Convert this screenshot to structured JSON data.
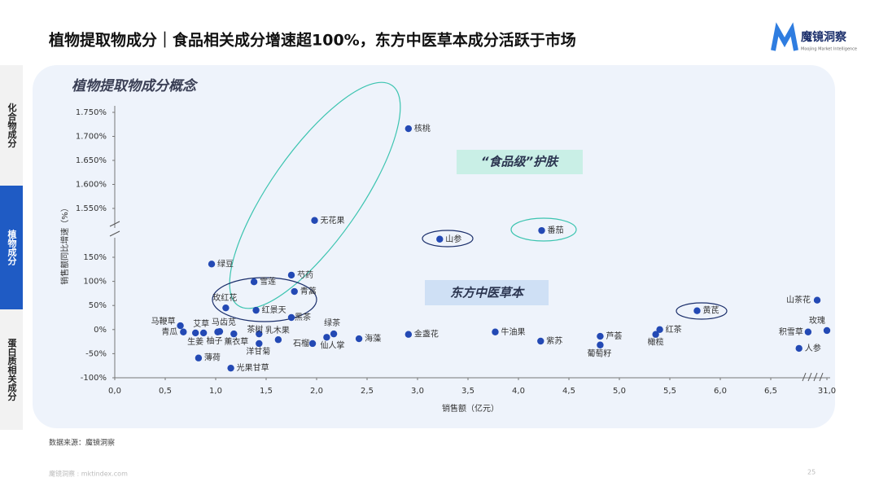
{
  "page": {
    "title": "植物提取物成分｜食品相关成分增速超100%，东方中医草本成分活跃于市场",
    "logo": "魔镜洞察",
    "logo_sub": "Moojing Market Intelligence",
    "tabs": [
      "化合物成分",
      "植物成分",
      "蛋白质相关成分"
    ],
    "source": "数据来源：魔镜洞察",
    "footer": "魔镜洞察 : mktindex.com",
    "page_number": "25"
  },
  "chart_data": {
    "type": "scatter",
    "title": "植物提取物成分概念",
    "x_label": "销售额（亿元）",
    "y_label": "销售额同比增速（%）",
    "annotations": [
      "“食品级”护肤",
      "东方中医草本"
    ],
    "color": "#2349b4",
    "xlim": [
      0,
      31
    ],
    "xbreak": [
      7,
      31
    ],
    "xticks": [
      {
        "value": 0,
        "label": "0,0"
      },
      {
        "value": 0.5,
        "label": "0,5"
      },
      {
        "value": 1,
        "label": "1,0"
      },
      {
        "value": 1.5,
        "label": "1,5"
      },
      {
        "value": 2,
        "label": "2,0"
      },
      {
        "value": 2.5,
        "label": "2,5"
      },
      {
        "value": 3,
        "label": "3,0"
      },
      {
        "value": 3.5,
        "label": "3,5"
      },
      {
        "value": 4,
        "label": "4,0"
      },
      {
        "value": 4.5,
        "label": "4,5"
      },
      {
        "value": 5,
        "label": "5,0"
      },
      {
        "value": 5.5,
        "label": "5,5"
      },
      {
        "value": 6,
        "label": "6,0"
      },
      {
        "value": 6.5,
        "label": "6,5"
      },
      {
        "value": 31,
        "label": "31,0"
      }
    ],
    "ylim": [
      -100,
      1750
    ],
    "ybreak": [
      150,
      1550
    ],
    "yticks": [
      {
        "value": -100,
        "label": "-100%"
      },
      {
        "value": -50,
        "label": "-50%"
      },
      {
        "value": 0,
        "label": "0%"
      },
      {
        "value": 50,
        "label": "50%"
      },
      {
        "value": 100,
        "label": "100%"
      },
      {
        "value": 150,
        "label": "150%"
      },
      {
        "value": 1550,
        "label": "1.550%"
      },
      {
        "value": 1600,
        "label": "1.600%"
      },
      {
        "value": 1650,
        "label": "1.650%"
      },
      {
        "value": 1700,
        "label": "1.700%"
      },
      {
        "value": 1750,
        "label": "1.750%"
      }
    ],
    "labels": [
      "核桃",
      "无花果",
      "山参",
      "番茄",
      "绿豆",
      "雪莲",
      "芍药",
      "青蒿",
      "玫红花",
      "红景天",
      "黑茶",
      "马鞭草",
      "青瓜",
      "艾草",
      "马齿苋",
      "生姜",
      "柚子",
      "薰衣草",
      "茶树",
      "乳木果",
      "洋甘菊",
      "石榴",
      "绿茶",
      "仙人掌",
      "薄荷",
      "光果甘草",
      "海藻",
      "金盏花",
      "牛油果",
      "紫苏",
      "芦荟",
      "葡萄籽",
      "红茶",
      "橄榄",
      "黄芪",
      "山茶花",
      "积雪草",
      "玫瑰",
      "人参"
    ],
    "x": [
      2.91,
      1.98,
      3.22,
      4.23,
      0.96,
      1.38,
      1.75,
      1.78,
      1.1,
      1.4,
      1.75,
      0.65,
      0.68,
      0.8,
      1.04,
      0.88,
      1.02,
      1.18,
      1.43,
      1.62,
      1.43,
      1.96,
      2.17,
      2.1,
      0.83,
      1.15,
      2.42,
      2.91,
      3.77,
      4.22,
      4.81,
      4.81,
      5.4,
      5.36,
      5.77,
      6.96,
      6.87,
      31.0,
      6.78
    ],
    "values": [
      1716,
      1525,
      1486,
      1504,
      136,
      99,
      113,
      79,
      45,
      40,
      25,
      8,
      -5,
      -7,
      -4,
      -7,
      -5,
      -9,
      -9,
      -21,
      -29,
      -29,
      -9,
      -16,
      -59,
      -80,
      -19,
      -10,
      -5,
      -24,
      -14,
      -32,
      0,
      -10,
      39,
      61,
      -5,
      -2,
      -39
    ]
  }
}
